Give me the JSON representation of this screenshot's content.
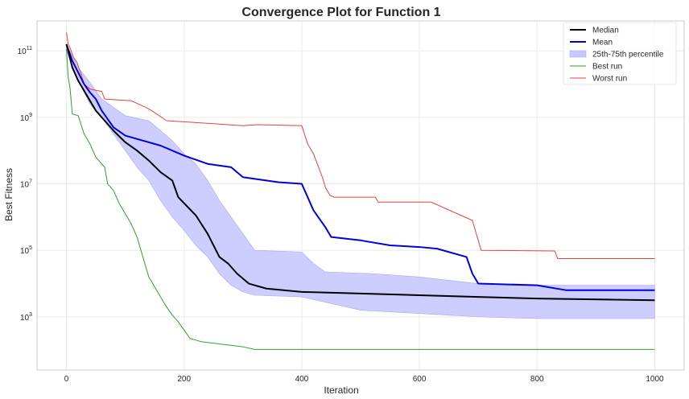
{
  "chart_data": {
    "type": "line",
    "title": "Convergence Plot for Function 1",
    "xlabel": "Iteration",
    "ylabel": "Best Fitness",
    "xlim": [
      -50,
      1050
    ],
    "ylim_log10": [
      1.4,
      11.9
    ],
    "yscale": "log",
    "grid": true,
    "legend_position": "top-right",
    "x_ticks": [
      0,
      200,
      400,
      600,
      800,
      1000
    ],
    "y_ticks": [
      {
        "base": "10",
        "exp": "3",
        "log10": 3
      },
      {
        "base": "10",
        "exp": "5",
        "log10": 5
      },
      {
        "base": "10",
        "exp": "7",
        "log10": 7
      },
      {
        "base": "10",
        "exp": "9",
        "log10": 9
      },
      {
        "base": "10",
        "exp": "11",
        "log10": 11
      }
    ],
    "legend": [
      {
        "label": "Median",
        "color": "#000000",
        "kind": "line",
        "width": 2
      },
      {
        "label": "Mean",
        "color": "#0000dd",
        "kind": "line",
        "width": 2
      },
      {
        "label": "25th-75th percentile",
        "color": "#c8c8ff",
        "kind": "band"
      },
      {
        "label": "Best run",
        "color": "#2ca02c",
        "kind": "line",
        "width": 1
      },
      {
        "label": "Worst run",
        "color": "#e8413c",
        "kind": "line",
        "width": 1
      }
    ],
    "series": [
      {
        "key": "worst",
        "color": "#e8413c",
        "width": 1,
        "log10_values": [
          [
            0,
            11.55
          ],
          [
            3,
            11.2
          ],
          [
            6,
            11.1
          ],
          [
            12,
            10.8
          ],
          [
            18,
            10.65
          ],
          [
            25,
            10.3
          ],
          [
            30,
            10.0
          ],
          [
            40,
            9.85
          ],
          [
            60,
            9.78
          ],
          [
            65,
            9.55
          ],
          [
            110,
            9.5
          ],
          [
            135,
            9.3
          ],
          [
            145,
            9.2
          ],
          [
            170,
            8.9
          ],
          [
            215,
            8.85
          ],
          [
            300,
            8.75
          ],
          [
            325,
            8.78
          ],
          [
            400,
            8.75
          ],
          [
            410,
            8.2
          ],
          [
            420,
            7.9
          ],
          [
            435,
            7.2
          ],
          [
            440,
            6.9
          ],
          [
            448,
            6.65
          ],
          [
            455,
            6.6
          ],
          [
            525,
            6.6
          ],
          [
            530,
            6.45
          ],
          [
            620,
            6.45
          ],
          [
            690,
            5.9
          ],
          [
            705,
            5.0
          ],
          [
            830,
            4.98
          ],
          [
            835,
            4.75
          ],
          [
            1000,
            4.75
          ]
        ]
      },
      {
        "key": "best",
        "color": "#2ca02c",
        "width": 1,
        "log10_values": [
          [
            0,
            11.05
          ],
          [
            3,
            10.2
          ],
          [
            6,
            9.9
          ],
          [
            10,
            9.1
          ],
          [
            20,
            9.05
          ],
          [
            30,
            8.5
          ],
          [
            40,
            8.2
          ],
          [
            50,
            7.8
          ],
          [
            60,
            7.6
          ],
          [
            65,
            7.5
          ],
          [
            70,
            7.0
          ],
          [
            80,
            6.8
          ],
          [
            90,
            6.4
          ],
          [
            100,
            6.1
          ],
          [
            110,
            5.8
          ],
          [
            120,
            5.4
          ],
          [
            130,
            4.8
          ],
          [
            140,
            4.2
          ],
          [
            150,
            3.9
          ],
          [
            160,
            3.6
          ],
          [
            170,
            3.3
          ],
          [
            180,
            3.05
          ],
          [
            190,
            2.85
          ],
          [
            200,
            2.6
          ],
          [
            210,
            2.35
          ],
          [
            220,
            2.3
          ],
          [
            230,
            2.25
          ],
          [
            300,
            2.1
          ],
          [
            320,
            2.02
          ],
          [
            1000,
            2.02
          ]
        ]
      },
      {
        "key": "mean",
        "color": "#0000dd",
        "width": 2,
        "log10_values": [
          [
            0,
            11.2
          ],
          [
            10,
            10.7
          ],
          [
            20,
            10.35
          ],
          [
            30,
            10.0
          ],
          [
            40,
            9.75
          ],
          [
            50,
            9.55
          ],
          [
            60,
            9.2
          ],
          [
            80,
            8.7
          ],
          [
            100,
            8.45
          ],
          [
            130,
            8.3
          ],
          [
            160,
            8.15
          ],
          [
            200,
            7.85
          ],
          [
            240,
            7.6
          ],
          [
            280,
            7.5
          ],
          [
            300,
            7.2
          ],
          [
            360,
            7.05
          ],
          [
            400,
            7.0
          ],
          [
            410,
            6.6
          ],
          [
            420,
            6.2
          ],
          [
            440,
            5.7
          ],
          [
            450,
            5.4
          ],
          [
            500,
            5.3
          ],
          [
            550,
            5.15
          ],
          [
            600,
            5.1
          ],
          [
            630,
            5.05
          ],
          [
            680,
            4.8
          ],
          [
            690,
            4.3
          ],
          [
            700,
            4.0
          ],
          [
            800,
            3.95
          ],
          [
            850,
            3.8
          ],
          [
            1000,
            3.8
          ]
        ]
      },
      {
        "key": "median",
        "color": "#000000",
        "width": 2,
        "log10_values": [
          [
            0,
            11.2
          ],
          [
            10,
            10.5
          ],
          [
            20,
            10.1
          ],
          [
            30,
            9.8
          ],
          [
            40,
            9.5
          ],
          [
            50,
            9.2
          ],
          [
            60,
            9.0
          ],
          [
            80,
            8.6
          ],
          [
            100,
            8.25
          ],
          [
            120,
            8.0
          ],
          [
            140,
            7.7
          ],
          [
            160,
            7.35
          ],
          [
            180,
            7.1
          ],
          [
            190,
            6.6
          ],
          [
            220,
            6.05
          ],
          [
            240,
            5.5
          ],
          [
            260,
            4.8
          ],
          [
            275,
            4.6
          ],
          [
            290,
            4.3
          ],
          [
            310,
            4.0
          ],
          [
            340,
            3.85
          ],
          [
            400,
            3.75
          ],
          [
            500,
            3.7
          ],
          [
            600,
            3.65
          ],
          [
            700,
            3.6
          ],
          [
            800,
            3.55
          ],
          [
            1000,
            3.5
          ]
        ]
      }
    ],
    "band": {
      "key": "iqr",
      "color": "#c8c8ff",
      "upper_log10": [
        [
          0,
          11.2
        ],
        [
          20,
          10.5
        ],
        [
          40,
          10.05
        ],
        [
          60,
          9.55
        ],
        [
          80,
          9.3
        ],
        [
          100,
          9.05
        ],
        [
          140,
          8.9
        ],
        [
          160,
          8.6
        ],
        [
          180,
          8.3
        ],
        [
          200,
          7.9
        ],
        [
          220,
          7.6
        ],
        [
          240,
          7.1
        ],
        [
          260,
          6.5
        ],
        [
          280,
          6.0
        ],
        [
          300,
          5.5
        ],
        [
          320,
          5.0
        ],
        [
          400,
          4.95
        ],
        [
          420,
          4.6
        ],
        [
          440,
          4.35
        ],
        [
          520,
          4.3
        ],
        [
          600,
          4.2
        ],
        [
          700,
          4.0
        ],
        [
          800,
          3.95
        ],
        [
          1000,
          3.95
        ]
      ],
      "lower_log10": [
        [
          0,
          11.0
        ],
        [
          20,
          10.1
        ],
        [
          40,
          9.4
        ],
        [
          60,
          9.0
        ],
        [
          80,
          8.5
        ],
        [
          100,
          8.0
        ],
        [
          120,
          7.5
        ],
        [
          140,
          7.1
        ],
        [
          160,
          6.5
        ],
        [
          180,
          6.0
        ],
        [
          200,
          5.6
        ],
        [
          220,
          5.15
        ],
        [
          240,
          4.8
        ],
        [
          260,
          4.3
        ],
        [
          280,
          3.95
        ],
        [
          300,
          3.75
        ],
        [
          320,
          3.65
        ],
        [
          400,
          3.6
        ],
        [
          500,
          3.2
        ],
        [
          600,
          3.1
        ],
        [
          700,
          3.0
        ],
        [
          800,
          2.95
        ],
        [
          1000,
          2.95
        ]
      ]
    }
  }
}
